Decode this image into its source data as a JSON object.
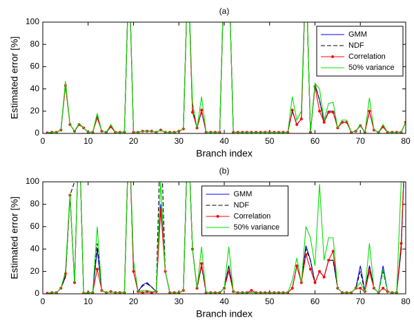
{
  "chart_data": [
    {
      "type": "line",
      "title": "(a)",
      "xlabel": "Branch index",
      "ylabel": "Estimated error [%]",
      "x": [
        1,
        2,
        3,
        4,
        5,
        6,
        7,
        8,
        9,
        10,
        11,
        12,
        13,
        14,
        15,
        16,
        17,
        18,
        19,
        20,
        21,
        22,
        23,
        24,
        25,
        26,
        27,
        28,
        29,
        30,
        31,
        32,
        33,
        34,
        35,
        36,
        37,
        38,
        39,
        40,
        41,
        42,
        43,
        44,
        45,
        46,
        47,
        48,
        49,
        50,
        51,
        52,
        53,
        54,
        55,
        56,
        57,
        58,
        59,
        60,
        61,
        62,
        63,
        64,
        65,
        66,
        67,
        68,
        69,
        70,
        71,
        72,
        73,
        74,
        75,
        76,
        77,
        78,
        79,
        80
      ],
      "xlim": [
        0,
        80
      ],
      "xticks": [
        0,
        10,
        20,
        30,
        40,
        50,
        60,
        70,
        80
      ],
      "ylim": [
        0,
        100
      ],
      "yticks": [
        0,
        20,
        40,
        60,
        80,
        100
      ],
      "legend": "upper right",
      "series": [
        {
          "name": "GMM",
          "color": "#0000ff",
          "linestyle": "solid",
          "values": [
            0.5,
            1,
            1,
            3,
            44,
            8,
            2,
            8,
            5,
            1,
            1,
            15,
            2,
            1,
            6,
            1,
            1,
            1,
            150,
            1,
            1,
            2,
            2,
            2,
            1,
            3,
            1,
            1,
            1,
            2,
            4,
            150,
            20,
            5,
            20,
            1,
            1,
            1,
            1,
            150,
            150,
            1,
            1,
            1,
            1,
            1,
            1,
            1,
            1,
            1,
            1,
            1,
            1,
            1,
            20,
            8,
            13,
            150,
            1,
            44,
            30,
            10,
            20,
            20,
            5,
            10,
            10,
            1,
            2,
            7,
            1,
            20,
            3,
            1,
            6,
            1,
            1,
            1,
            1,
            10
          ]
        },
        {
          "name": "NDF",
          "color": "#000000",
          "linestyle": "dashed",
          "values": [
            0.5,
            1,
            1,
            3,
            45,
            8,
            2,
            8,
            5,
            1,
            1,
            15,
            2,
            1,
            6,
            1,
            1,
            1,
            150,
            1,
            1,
            2,
            2,
            2,
            1,
            3,
            1,
            1,
            1,
            2,
            4,
            150,
            22,
            5,
            20,
            1,
            1,
            1,
            1,
            150,
            150,
            1,
            1,
            1,
            1,
            1,
            1,
            1,
            1,
            1,
            1,
            1,
            1,
            1,
            20,
            8,
            13,
            150,
            1,
            44,
            30,
            10,
            20,
            20,
            5,
            10,
            10,
            1,
            2,
            7,
            1,
            20,
            3,
            1,
            6,
            1,
            1,
            1,
            1,
            10
          ]
        },
        {
          "name": "Correlation",
          "color": "#ff0000",
          "linestyle": "solid",
          "marker": "dot",
          "values": [
            0.5,
            1,
            1,
            3,
            43,
            8,
            2,
            8,
            5,
            1,
            1,
            14,
            2,
            1,
            6,
            1,
            1,
            1,
            150,
            1,
            1,
            2,
            2,
            2,
            1,
            3,
            1,
            1,
            1,
            2,
            4,
            150,
            19,
            5,
            21,
            1,
            1,
            1,
            1,
            150,
            150,
            1,
            1,
            1,
            1,
            1,
            1,
            1,
            1,
            1,
            1,
            1,
            1,
            1,
            21,
            8,
            13,
            150,
            1,
            42,
            20,
            10,
            19,
            19,
            5,
            10,
            10,
            1,
            2,
            7,
            1,
            20,
            3,
            1,
            6,
            1,
            1,
            1,
            1,
            10
          ]
        },
        {
          "name": "50% variance",
          "color": "#00e000",
          "linestyle": "solid",
          "values": [
            0.5,
            1,
            1,
            3,
            47,
            8,
            2,
            9,
            5,
            1,
            1,
            18,
            2,
            1,
            8,
            1,
            1,
            1,
            150,
            1,
            1,
            2,
            2,
            2,
            1,
            3,
            1,
            1,
            1,
            2,
            4,
            150,
            28,
            5,
            33,
            1,
            1,
            1,
            1,
            150,
            150,
            1,
            1,
            1,
            1,
            1,
            1,
            1,
            1,
            1,
            1,
            1,
            1,
            1,
            33,
            12,
            20,
            150,
            1,
            45,
            40,
            12,
            27,
            28,
            5,
            12,
            12,
            1,
            2,
            8,
            1,
            32,
            3,
            1,
            8,
            1,
            1,
            1,
            1,
            10
          ]
        }
      ]
    },
    {
      "type": "line",
      "title": "(b)",
      "xlabel": "Branch index",
      "ylabel": "Estimated error [%]",
      "x": [
        1,
        2,
        3,
        4,
        5,
        6,
        7,
        8,
        9,
        10,
        11,
        12,
        13,
        14,
        15,
        16,
        17,
        18,
        19,
        20,
        21,
        22,
        23,
        24,
        25,
        26,
        27,
        28,
        29,
        30,
        31,
        32,
        33,
        34,
        35,
        36,
        37,
        38,
        39,
        40,
        41,
        42,
        43,
        44,
        45,
        46,
        47,
        48,
        49,
        50,
        51,
        52,
        53,
        54,
        55,
        56,
        57,
        58,
        59,
        60,
        61,
        62,
        63,
        64,
        65,
        66,
        67,
        68,
        69,
        70,
        71,
        72,
        73,
        74,
        75,
        76,
        77,
        78,
        79,
        80
      ],
      "xlim": [
        0,
        80
      ],
      "xticks": [
        0,
        10,
        20,
        30,
        40,
        50,
        60,
        70,
        80
      ],
      "ylim": [
        0,
        100
      ],
      "yticks": [
        0,
        20,
        40,
        60,
        80,
        100
      ],
      "legend": "upper center",
      "series": [
        {
          "name": "GMM",
          "color": "#0000ff",
          "linestyle": "solid",
          "values": [
            0.5,
            1,
            1,
            5,
            15,
            88,
            10,
            150,
            0.5,
            1,
            1,
            40,
            3,
            1,
            2,
            1,
            1,
            1,
            150,
            20,
            2,
            8,
            10,
            6,
            2,
            80,
            20,
            1,
            1,
            1,
            3,
            150,
            40,
            5,
            25,
            1,
            1,
            1,
            1,
            5,
            25,
            2,
            1,
            1,
            1,
            1,
            1,
            1,
            1,
            1,
            1,
            1,
            1,
            1,
            5,
            25,
            10,
            43,
            30,
            10,
            20,
            15,
            30,
            30,
            5,
            1,
            1,
            1,
            5,
            25,
            2,
            25,
            5,
            1,
            25,
            2,
            1,
            1,
            40,
            150
          ]
        },
        {
          "name": "NDF",
          "color": "#000000",
          "linestyle": "dashed",
          "values": [
            0.5,
            1,
            1,
            5,
            15,
            88,
            100,
            150,
            0.5,
            1,
            1,
            45,
            3,
            1,
            2,
            1,
            1,
            1,
            150,
            20,
            2,
            7,
            9,
            6,
            2,
            150,
            20,
            1,
            1,
            1,
            3,
            150,
            40,
            5,
            25,
            1,
            1,
            1,
            1,
            5,
            25,
            2,
            1,
            1,
            1,
            1,
            1,
            1,
            1,
            1,
            1,
            1,
            1,
            1,
            5,
            25,
            10,
            40,
            30,
            10,
            20,
            15,
            30,
            30,
            5,
            1,
            1,
            1,
            5,
            20,
            2,
            25,
            5,
            1,
            20,
            2,
            1,
            1,
            40,
            150
          ]
        },
        {
          "name": "Correlation",
          "color": "#ff0000",
          "linestyle": "solid",
          "marker": "dot",
          "values": [
            0.5,
            1,
            1,
            5,
            18,
            88,
            10,
            150,
            0.5,
            1,
            1,
            22,
            3,
            1,
            2,
            1,
            1,
            1,
            150,
            20,
            2,
            1,
            2,
            1,
            2,
            75,
            20,
            1,
            1,
            1,
            3,
            150,
            40,
            5,
            27,
            1,
            1,
            1,
            1,
            5,
            20,
            2,
            1,
            1,
            1,
            3,
            1,
            1,
            1,
            1,
            1,
            1,
            1,
            1,
            5,
            25,
            10,
            35,
            22,
            10,
            20,
            15,
            30,
            38,
            5,
            1,
            1,
            1,
            5,
            5,
            2,
            20,
            5,
            1,
            5,
            2,
            1,
            1,
            45,
            150
          ]
        },
        {
          "name": "50% variance",
          "color": "#00e000",
          "linestyle": "solid",
          "values": [
            0.5,
            1,
            1,
            5,
            20,
            90,
            10,
            150,
            0.5,
            1,
            1,
            60,
            3,
            1,
            2,
            1,
            1,
            1,
            150,
            30,
            2,
            3,
            3,
            2,
            2,
            100,
            20,
            1,
            1,
            1,
            3,
            150,
            40,
            5,
            42,
            1,
            1,
            1,
            1,
            5,
            42,
            2,
            1,
            1,
            1,
            1,
            1,
            1,
            1,
            1,
            1,
            1,
            1,
            1,
            12,
            32,
            10,
            60,
            50,
            25,
            98,
            30,
            50,
            50,
            5,
            1,
            1,
            1,
            5,
            10,
            2,
            45,
            5,
            1,
            22,
            2,
            1,
            1,
            100,
            150
          ]
        }
      ]
    }
  ]
}
